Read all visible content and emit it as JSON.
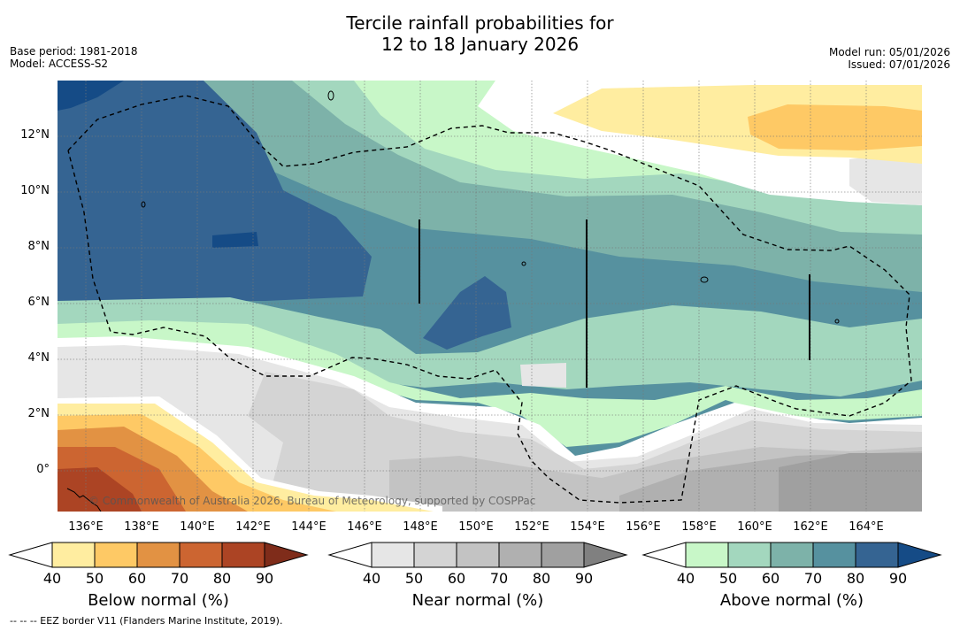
{
  "title": {
    "line1": "Tercile rainfall probabilities for",
    "line2": "12 to 18 January 2026"
  },
  "meta": {
    "base_period": "Base period: 1981-2018",
    "model": "Model: ACCESS-S2",
    "model_run": "Model run: 05/01/2026",
    "issued": "Issued: 07/01/2026"
  },
  "map": {
    "lon_range": [
      134.8,
      165.4
    ],
    "lat_range": [
      -1.5,
      13.9
    ],
    "lat_ticks": [
      {
        "value": 12,
        "label": "12°N"
      },
      {
        "value": 10,
        "label": "10°N"
      },
      {
        "value": 8,
        "label": "8°N"
      },
      {
        "value": 6,
        "label": "6°N"
      },
      {
        "value": 4,
        "label": "4°N"
      },
      {
        "value": 2,
        "label": "2°N"
      },
      {
        "value": 0,
        "label": "0°"
      }
    ],
    "lon_ticks": [
      {
        "value": 136,
        "label": "136°E"
      },
      {
        "value": 138,
        "label": "138°E"
      },
      {
        "value": 140,
        "label": "140°E"
      },
      {
        "value": 142,
        "label": "142°E"
      },
      {
        "value": 144,
        "label": "144°E"
      },
      {
        "value": 146,
        "label": "146°E"
      },
      {
        "value": 148,
        "label": "148°E"
      },
      {
        "value": 150,
        "label": "150°E"
      },
      {
        "value": 152,
        "label": "152°E"
      },
      {
        "value": 154,
        "label": "154°E"
      },
      {
        "value": 156,
        "label": "156°E"
      },
      {
        "value": 158,
        "label": "158°E"
      },
      {
        "value": 160,
        "label": "160°E"
      },
      {
        "value": 162,
        "label": "162°E"
      },
      {
        "value": 164,
        "label": "164°E"
      }
    ],
    "copyright": "© Commonwealth of Australia 2026, Bureau of Meteorology, supported by COSPPac"
  },
  "colorbars": [
    {
      "label": "Below normal (%)",
      "ticks": [
        "40",
        "50",
        "60",
        "70",
        "80",
        "90"
      ],
      "colors": [
        "#ffeda0",
        "#fec965",
        "#e29243",
        "#cc6531",
        "#ac4424",
        "#7f2c1a"
      ]
    },
    {
      "label": "Near normal (%)",
      "ticks": [
        "40",
        "50",
        "60",
        "70",
        "80",
        "90"
      ],
      "colors": [
        "#e6e6e6",
        "#d4d4d4",
        "#c3c3c3",
        "#b0b0b0",
        "#a0a0a0",
        "#808080"
      ]
    },
    {
      "label": "Above normal (%)",
      "ticks": [
        "40",
        "50",
        "60",
        "70",
        "80",
        "90"
      ],
      "colors": [
        "#c8f7c8",
        "#a3d7be",
        "#7db2a9",
        "#56919f",
        "#356492",
        "#154b86"
      ]
    }
  ],
  "footnote": "--  --  -- EEZ border V11 (Flanders Marine Institute, 2019)."
}
